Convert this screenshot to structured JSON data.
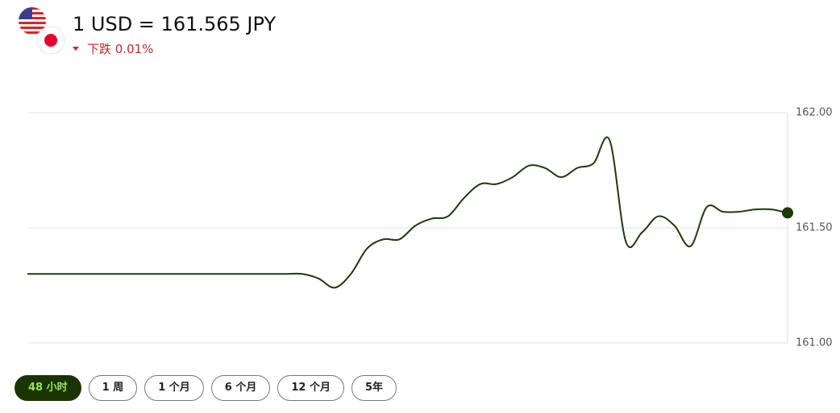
{
  "header": {
    "title": "1 USD = 161.565 JPY",
    "change": "下跌 0.01%"
  },
  "chart_data": {
    "type": "line",
    "series": [
      {
        "color": "#1d3a08",
        "values": [
          161.3,
          161.3,
          161.3,
          161.3,
          161.3,
          161.3,
          161.3,
          161.3,
          161.3,
          161.3,
          161.3,
          161.3,
          161.3,
          161.3,
          161.3,
          161.3,
          161.3,
          161.3,
          161.28,
          161.24,
          161.3,
          161.41,
          161.45,
          161.45,
          161.51,
          161.54,
          161.55,
          161.63,
          161.69,
          161.69,
          161.72,
          161.77,
          161.76,
          161.72,
          161.76,
          161.78,
          161.88,
          161.44,
          161.48,
          161.55,
          161.51,
          161.42,
          161.59,
          161.57,
          161.57,
          161.58,
          161.58,
          161.565
        ]
      }
    ],
    "ylim": [
      161,
      162
    ],
    "yticks": [
      {
        "value": 161,
        "label": "161.00"
      },
      {
        "value": 161.5,
        "label": "161.50"
      },
      {
        "value": 162,
        "label": "162.00"
      }
    ],
    "grid": true
  },
  "ranges": [
    "48 小时",
    "1 周",
    "1 个月",
    "6 个月",
    "12 个月",
    "5年"
  ],
  "active_range": 0
}
